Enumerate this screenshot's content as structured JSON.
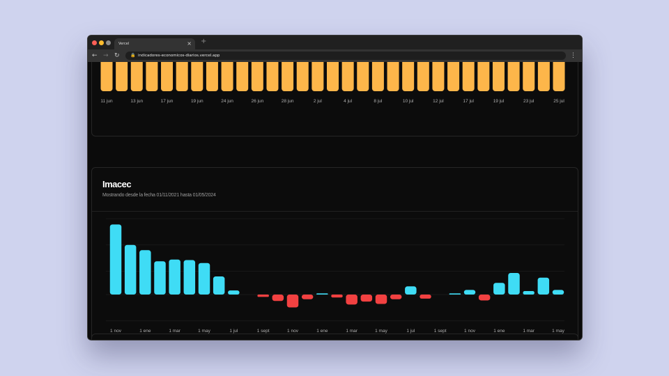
{
  "browser": {
    "tab_title": "Vercel",
    "tab_close": "×",
    "new_tab": "+",
    "url": "indicadores-economicos-diarios.vercel.app",
    "icons": {
      "back": "arrow-left-icon",
      "forward": "arrow-right-icon",
      "reload": "reload-icon",
      "lock": "lock-icon",
      "menu": "kebab-menu-icon"
    }
  },
  "top_card": {
    "chart_data": {
      "type": "bar",
      "color": "#fdb64a",
      "categories": [
        "11 jun",
        "",
        "13 jun",
        "",
        "17 jun",
        "",
        "19 jun",
        "",
        "24 jun",
        "",
        "26 jun",
        "",
        "28 jun",
        "",
        "2 jul",
        "",
        "4 jul",
        "",
        "8 jul",
        "",
        "10 jul",
        "",
        "12 jul",
        "",
        "17 jul",
        "",
        "19 jul",
        "",
        "23 jul",
        "",
        "25 jul"
      ],
      "tick_labels": [
        "11 jun",
        "13 jun",
        "17 jun",
        "19 jun",
        "24 jun",
        "26 jun",
        "28 jun",
        "2 jul",
        "4 jul",
        "8 jul",
        "10 jul",
        "12 jul",
        "17 jul",
        "19 jul",
        "23 jul",
        "25 jul"
      ],
      "note_values": "bars extend above the visible viewport"
    }
  },
  "imacec": {
    "title": "Imacec",
    "subtitle": "Mostrando desde la fecha 01/11/2021 hasta 01/05/2024",
    "chart_data": {
      "type": "bar",
      "positive_color": "#3fdcf5",
      "negative_color": "#f24141",
      "categories": [
        "nov 2021",
        "dic 2021",
        "ene 2022",
        "feb 2022",
        "mar 2022",
        "abr 2022",
        "may 2022",
        "jun 2022",
        "jul 2022",
        "ago 2022",
        "sept 2022",
        "oct 2022",
        "nov 2022",
        "dic 2022",
        "ene 2023",
        "feb 2023",
        "mar 2023",
        "abr 2023",
        "may 2023",
        "jun 2023",
        "jul 2023",
        "ago 2023",
        "sept 2023",
        "oct 2023",
        "nov 2023",
        "dic 2023",
        "ene 2024",
        "feb 2024",
        "mar 2024",
        "abr 2024",
        "may 2024"
      ],
      "values": [
        12.0,
        8.5,
        7.6,
        5.7,
        6.0,
        5.9,
        5.4,
        3.1,
        0.7,
        null,
        -0.4,
        -1.1,
        -2.2,
        -0.8,
        0.2,
        -0.5,
        -1.7,
        -1.2,
        -1.6,
        -0.8,
        1.4,
        -0.7,
        null,
        0.2,
        0.8,
        -1.0,
        2.0,
        3.7,
        0.6,
        2.9,
        0.8
      ],
      "x_ticks": [
        "1 nov",
        "1 ene",
        "1 mar",
        "1 may",
        "1 jul",
        "1 sept",
        "1 nov",
        "1 ene",
        "1 mar",
        "1 may",
        "1 jul",
        "1 sept",
        "1 nov",
        "1 ene",
        "1 mar",
        "1 may"
      ],
      "ylim": [
        -5,
        13
      ],
      "grid": true,
      "legend": "none"
    }
  }
}
